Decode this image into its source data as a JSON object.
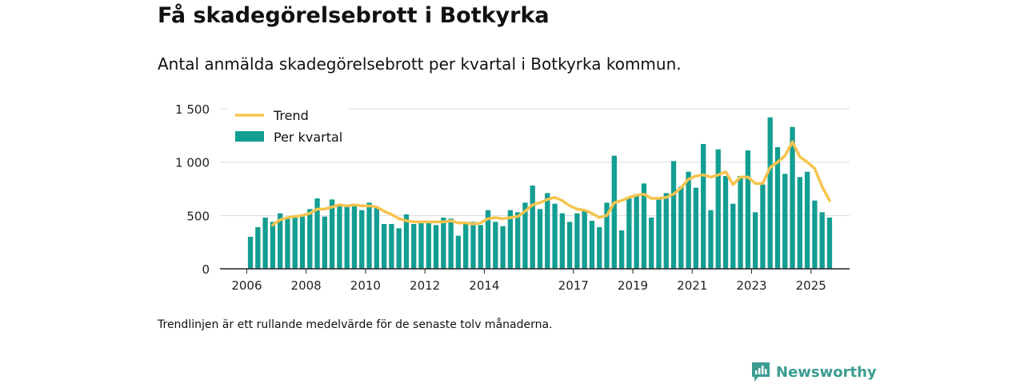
{
  "title": "Få skadegörelsebrott i Botkyrka",
  "subtitle": "Antal anmälda skadegörelsebrott per kvartal i Botkyrka kommun.",
  "footnote": "Trendlinjen är ett rullande medelvärde för de senaste tolv månaderna.",
  "brand": {
    "name": "Newsworthy",
    "icon": "newsworthy-logo-icon",
    "color": "#3c9c92"
  },
  "chart_data": {
    "type": "bar",
    "title": "Få skadegörelsebrott i Botkyrka",
    "xlabel": "",
    "ylabel": "",
    "ylim": [
      0,
      1500
    ],
    "yticks": [
      0,
      500,
      1000,
      1500
    ],
    "ytick_labels": [
      "0",
      "500",
      "1 000",
      "1 500"
    ],
    "xticks": [
      {
        "label": "2006",
        "x": 2006.0
      },
      {
        "label": "2008",
        "x": 2008.0
      },
      {
        "label": "2010",
        "x": 2010.0
      },
      {
        "label": "2012",
        "x": 2012.0
      },
      {
        "label": "2014",
        "x": 2014.0
      },
      {
        "label": "2017",
        "x": 2017.0
      },
      {
        "label": "2019",
        "x": 2019.0
      },
      {
        "label": "2021",
        "x": 2021.0
      },
      {
        "label": "2023",
        "x": 2023.0
      },
      {
        "label": "2025",
        "x": 2025.0
      }
    ],
    "xlim": [
      2005.1,
      2026.3
    ],
    "start_year": 2006,
    "grid": true,
    "legend_position": "top-left",
    "colors": {
      "bars": "#139e92",
      "trend": "#f7c34d",
      "grid": "#dddddd",
      "axis": "#222222"
    },
    "series": [
      {
        "name": "Per kvartal",
        "type": "bar",
        "values": [
          300,
          390,
          480,
          440,
          520,
          480,
          500,
          490,
          560,
          660,
          490,
          650,
          600,
          580,
          610,
          550,
          620,
          580,
          420,
          420,
          380,
          510,
          420,
          430,
          440,
          410,
          480,
          470,
          310,
          430,
          440,
          410,
          550,
          440,
          400,
          550,
          530,
          620,
          780,
          560,
          710,
          610,
          520,
          440,
          520,
          540,
          450,
          390,
          620,
          1060,
          360,
          660,
          700,
          800,
          480,
          670,
          710,
          1010,
          770,
          910,
          760,
          1170,
          550,
          1120,
          870,
          610,
          870,
          1110,
          530,
          790,
          1420,
          1140,
          890,
          1330,
          860,
          910,
          640,
          530,
          480
        ]
      },
      {
        "name": "Trend",
        "type": "line",
        "values": [
          null,
          null,
          null,
          410,
          460,
          480,
          490,
          500,
          520,
          560,
          560,
          580,
          600,
          590,
          600,
          590,
          590,
          580,
          540,
          510,
          470,
          450,
          440,
          440,
          440,
          440,
          440,
          450,
          430,
          430,
          420,
          430,
          470,
          480,
          470,
          480,
          490,
          540,
          600,
          620,
          650,
          670,
          640,
          590,
          560,
          550,
          520,
          480,
          500,
          620,
          640,
          670,
          690,
          700,
          660,
          660,
          670,
          700,
          760,
          840,
          870,
          880,
          860,
          880,
          910,
          790,
          860,
          860,
          800,
          800,
          950,
          1000,
          1060,
          1190,
          1050,
          1000,
          940,
          770,
          640
        ]
      }
    ]
  }
}
